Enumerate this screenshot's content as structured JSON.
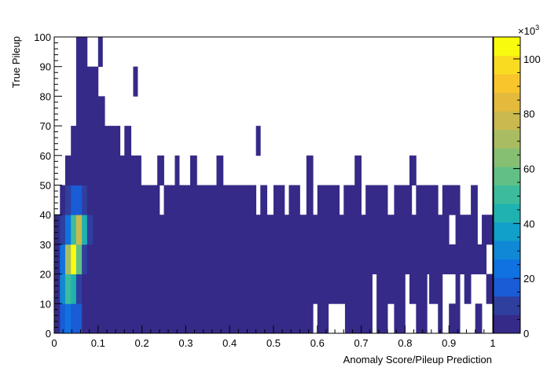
{
  "chart_data": {
    "type": "heatmap",
    "title": "",
    "xlabel": "Anomaly Score/Pileup Prediction",
    "ylabel": "True Pileup",
    "xlim": [
      0,
      1
    ],
    "ylim": [
      0,
      100
    ],
    "x_ticks": [
      0,
      0.1,
      0.2,
      0.3,
      0.4,
      0.5,
      0.6,
      0.7,
      0.8,
      0.9,
      1
    ],
    "x_tick_labels": [
      "0",
      "0.1",
      "0.2",
      "0.3",
      "0.4",
      "0.5",
      "0.6",
      "0.7",
      "0.8",
      "0.9",
      "1"
    ],
    "y_ticks": [
      0,
      10,
      20,
      30,
      40,
      50,
      60,
      70,
      80,
      90,
      100
    ],
    "y_tick_labels": [
      "0",
      "10",
      "20",
      "30",
      "40",
      "50",
      "60",
      "70",
      "80",
      "90",
      "100"
    ],
    "colorbar": {
      "min": 0,
      "max": 108,
      "exponent_label": "×10",
      "exponent_power": "3",
      "ticks": [
        0,
        20,
        40,
        60,
        80,
        100
      ],
      "tick_labels": [
        "0",
        "20",
        "40",
        "60",
        "80",
        "100"
      ],
      "palette": [
        "#352a87",
        "#2f3f9e",
        "#1a5bd6",
        "#0f72e0",
        "#1088d6",
        "#11a0c9",
        "#1fb2b0",
        "#3cbc9c",
        "#62c086",
        "#87bf72",
        "#aabc62",
        "#c9b94e",
        "#e4ba3c",
        "#f8c52c",
        "#f9dc22",
        "#f9fb0e"
      ]
    },
    "bins_x": 80,
    "bins_y": 50,
    "rows_comment": "Each row: [y_low, y_high, [[x_start, x_end, value], ...]]; values in thousands of counts",
    "rows": [
      [
        0,
        10,
        [
          [
            0.0,
            0.013,
            2
          ],
          [
            0.013,
            0.025,
            15
          ],
          [
            0.025,
            0.038,
            22
          ],
          [
            0.038,
            0.063,
            14
          ],
          [
            0.063,
            0.575,
            1
          ],
          [
            0.575,
            0.59,
            1
          ],
          [
            0.6,
            0.625,
            1
          ],
          [
            0.663,
            0.725,
            1
          ],
          [
            0.735,
            0.76,
            1
          ],
          [
            0.775,
            0.8,
            1
          ],
          [
            0.825,
            0.85,
            1
          ],
          [
            0.875,
            0.885,
            1
          ],
          [
            0.9,
            0.925,
            1
          ],
          [
            0.96,
            0.975,
            1
          ]
        ]
      ],
      [
        10,
        20,
        [
          [
            0.0,
            0.013,
            4
          ],
          [
            0.013,
            0.025,
            30
          ],
          [
            0.025,
            0.038,
            50
          ],
          [
            0.038,
            0.05,
            45
          ],
          [
            0.05,
            0.063,
            10
          ],
          [
            0.063,
            0.575,
            1
          ],
          [
            0.575,
            0.625,
            1
          ],
          [
            0.625,
            0.725,
            1
          ],
          [
            0.735,
            0.775,
            1
          ],
          [
            0.775,
            0.8,
            1
          ],
          [
            0.81,
            0.85,
            1
          ],
          [
            0.855,
            0.885,
            1
          ],
          [
            0.915,
            0.925,
            1
          ],
          [
            0.935,
            0.95,
            1
          ],
          [
            0.985,
            1.0,
            1
          ]
        ]
      ],
      [
        20,
        30,
        [
          [
            0.0,
            0.013,
            3
          ],
          [
            0.013,
            0.025,
            25
          ],
          [
            0.025,
            0.038,
            70
          ],
          [
            0.038,
            0.05,
            108
          ],
          [
            0.05,
            0.063,
            60
          ],
          [
            0.063,
            0.075,
            8
          ],
          [
            0.075,
            0.985,
            1
          ]
        ]
      ],
      [
        30,
        40,
        [
          [
            0.0,
            0.013,
            1
          ],
          [
            0.013,
            0.025,
            8
          ],
          [
            0.025,
            0.038,
            25
          ],
          [
            0.038,
            0.05,
            50
          ],
          [
            0.05,
            0.063,
            75
          ],
          [
            0.063,
            0.075,
            45
          ],
          [
            0.075,
            0.088,
            12
          ],
          [
            0.088,
            0.9,
            1
          ],
          [
            0.915,
            0.965,
            1
          ],
          [
            0.975,
            1.0,
            1
          ]
        ]
      ],
      [
        40,
        50,
        [
          [
            0.013,
            0.025,
            3
          ],
          [
            0.025,
            0.038,
            8
          ],
          [
            0.038,
            0.05,
            15
          ],
          [
            0.05,
            0.063,
            20
          ],
          [
            0.063,
            0.075,
            10
          ],
          [
            0.075,
            0.24,
            1
          ],
          [
            0.25,
            0.46,
            1
          ],
          [
            0.47,
            0.485,
            1
          ],
          [
            0.5,
            0.525,
            1
          ],
          [
            0.535,
            0.56,
            1
          ],
          [
            0.575,
            0.59,
            1
          ],
          [
            0.6,
            0.65,
            1
          ],
          [
            0.66,
            0.7,
            1
          ],
          [
            0.71,
            0.76,
            1
          ],
          [
            0.775,
            0.815,
            1
          ],
          [
            0.825,
            0.875,
            1
          ],
          [
            0.885,
            0.925,
            1
          ],
          [
            0.95,
            0.965,
            1
          ]
        ]
      ],
      [
        50,
        60,
        [
          [
            0.025,
            0.038,
            2
          ],
          [
            0.038,
            0.063,
            4
          ],
          [
            0.063,
            0.075,
            3
          ],
          [
            0.075,
            0.198,
            1
          ],
          [
            0.235,
            0.25,
            1
          ],
          [
            0.275,
            0.285,
            1
          ],
          [
            0.31,
            0.325,
            1
          ],
          [
            0.37,
            0.385,
            1
          ],
          [
            0.575,
            0.59,
            1
          ],
          [
            0.685,
            0.7,
            1
          ],
          [
            0.81,
            0.825,
            1
          ]
        ]
      ],
      [
        60,
        70,
        [
          [
            0.038,
            0.05,
            1
          ],
          [
            0.05,
            0.063,
            2
          ],
          [
            0.063,
            0.15,
            1
          ],
          [
            0.16,
            0.175,
            1
          ],
          [
            0.46,
            0.47,
            1
          ]
        ]
      ],
      [
        70,
        80,
        [
          [
            0.05,
            0.063,
            1
          ],
          [
            0.063,
            0.088,
            1
          ],
          [
            0.088,
            0.115,
            1
          ]
        ]
      ],
      [
        80,
        90,
        [
          [
            0.05,
            0.063,
            1
          ],
          [
            0.063,
            0.088,
            1
          ],
          [
            0.088,
            0.1,
            1
          ],
          [
            0.18,
            0.19,
            1
          ]
        ]
      ],
      [
        90,
        100,
        [
          [
            0.05,
            0.063,
            1
          ],
          [
            0.063,
            0.075,
            1
          ],
          [
            0.1,
            0.11,
            1
          ]
        ]
      ]
    ]
  }
}
